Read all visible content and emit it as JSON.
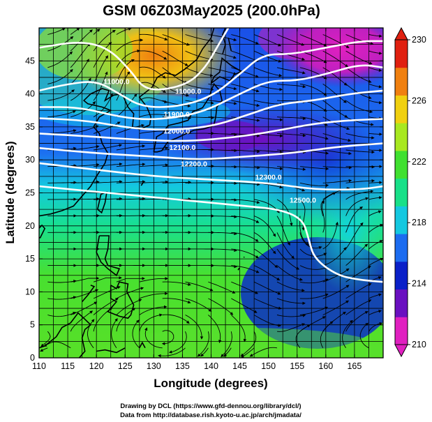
{
  "title": "GSM 06Z03May2025 (200.0hPa)",
  "xaxis": {
    "label": "Longitude (degrees)",
    "range": [
      110,
      170
    ],
    "ticks": [
      "110",
      "115",
      "120",
      "125",
      "130",
      "135",
      "140",
      "145",
      "150",
      "155",
      "160",
      "165"
    ]
  },
  "yaxis": {
    "label": "Latitude  (degrees)",
    "range": [
      0,
      50
    ],
    "ticks": [
      "0",
      "5",
      "10",
      "15",
      "20",
      "25",
      "30",
      "35",
      "40",
      "45"
    ]
  },
  "colorbar": {
    "range": [
      210,
      230
    ],
    "ticks": [
      "210",
      "214",
      "218",
      "222",
      "226",
      "230"
    ],
    "colors": [
      "#e020c0",
      "#6a10c0",
      "#0a20c8",
      "#1c6cf0",
      "#14c8e0",
      "#18e088",
      "#40e030",
      "#a8e820",
      "#f0d010",
      "#f08010",
      "#e02010"
    ]
  },
  "contour_labels": [
    {
      "text": "11000.0",
      "lon": 123.5,
      "lat": 41.5
    },
    {
      "text": "11000.0",
      "lon": 136,
      "lat": 40
    },
    {
      "text": "11900.0",
      "lon": 134,
      "lat": 36.5
    },
    {
      "text": "12000.0",
      "lon": 134,
      "lat": 34
    },
    {
      "text": "12100.0",
      "lon": 135,
      "lat": 31.5
    },
    {
      "text": "12200.0",
      "lon": 137,
      "lat": 29
    },
    {
      "text": "12300.0",
      "lon": 150,
      "lat": 27
    },
    {
      "text": "12500.0",
      "lon": 156,
      "lat": 23.5
    }
  ],
  "credits": {
    "line1": "Drawing by DCL (https://www.gfd-dennou.org/library/dcl/)",
    "line2": "Data from http://database.rish.kyoto-u.ac.jp/arch/jmadata/"
  }
}
